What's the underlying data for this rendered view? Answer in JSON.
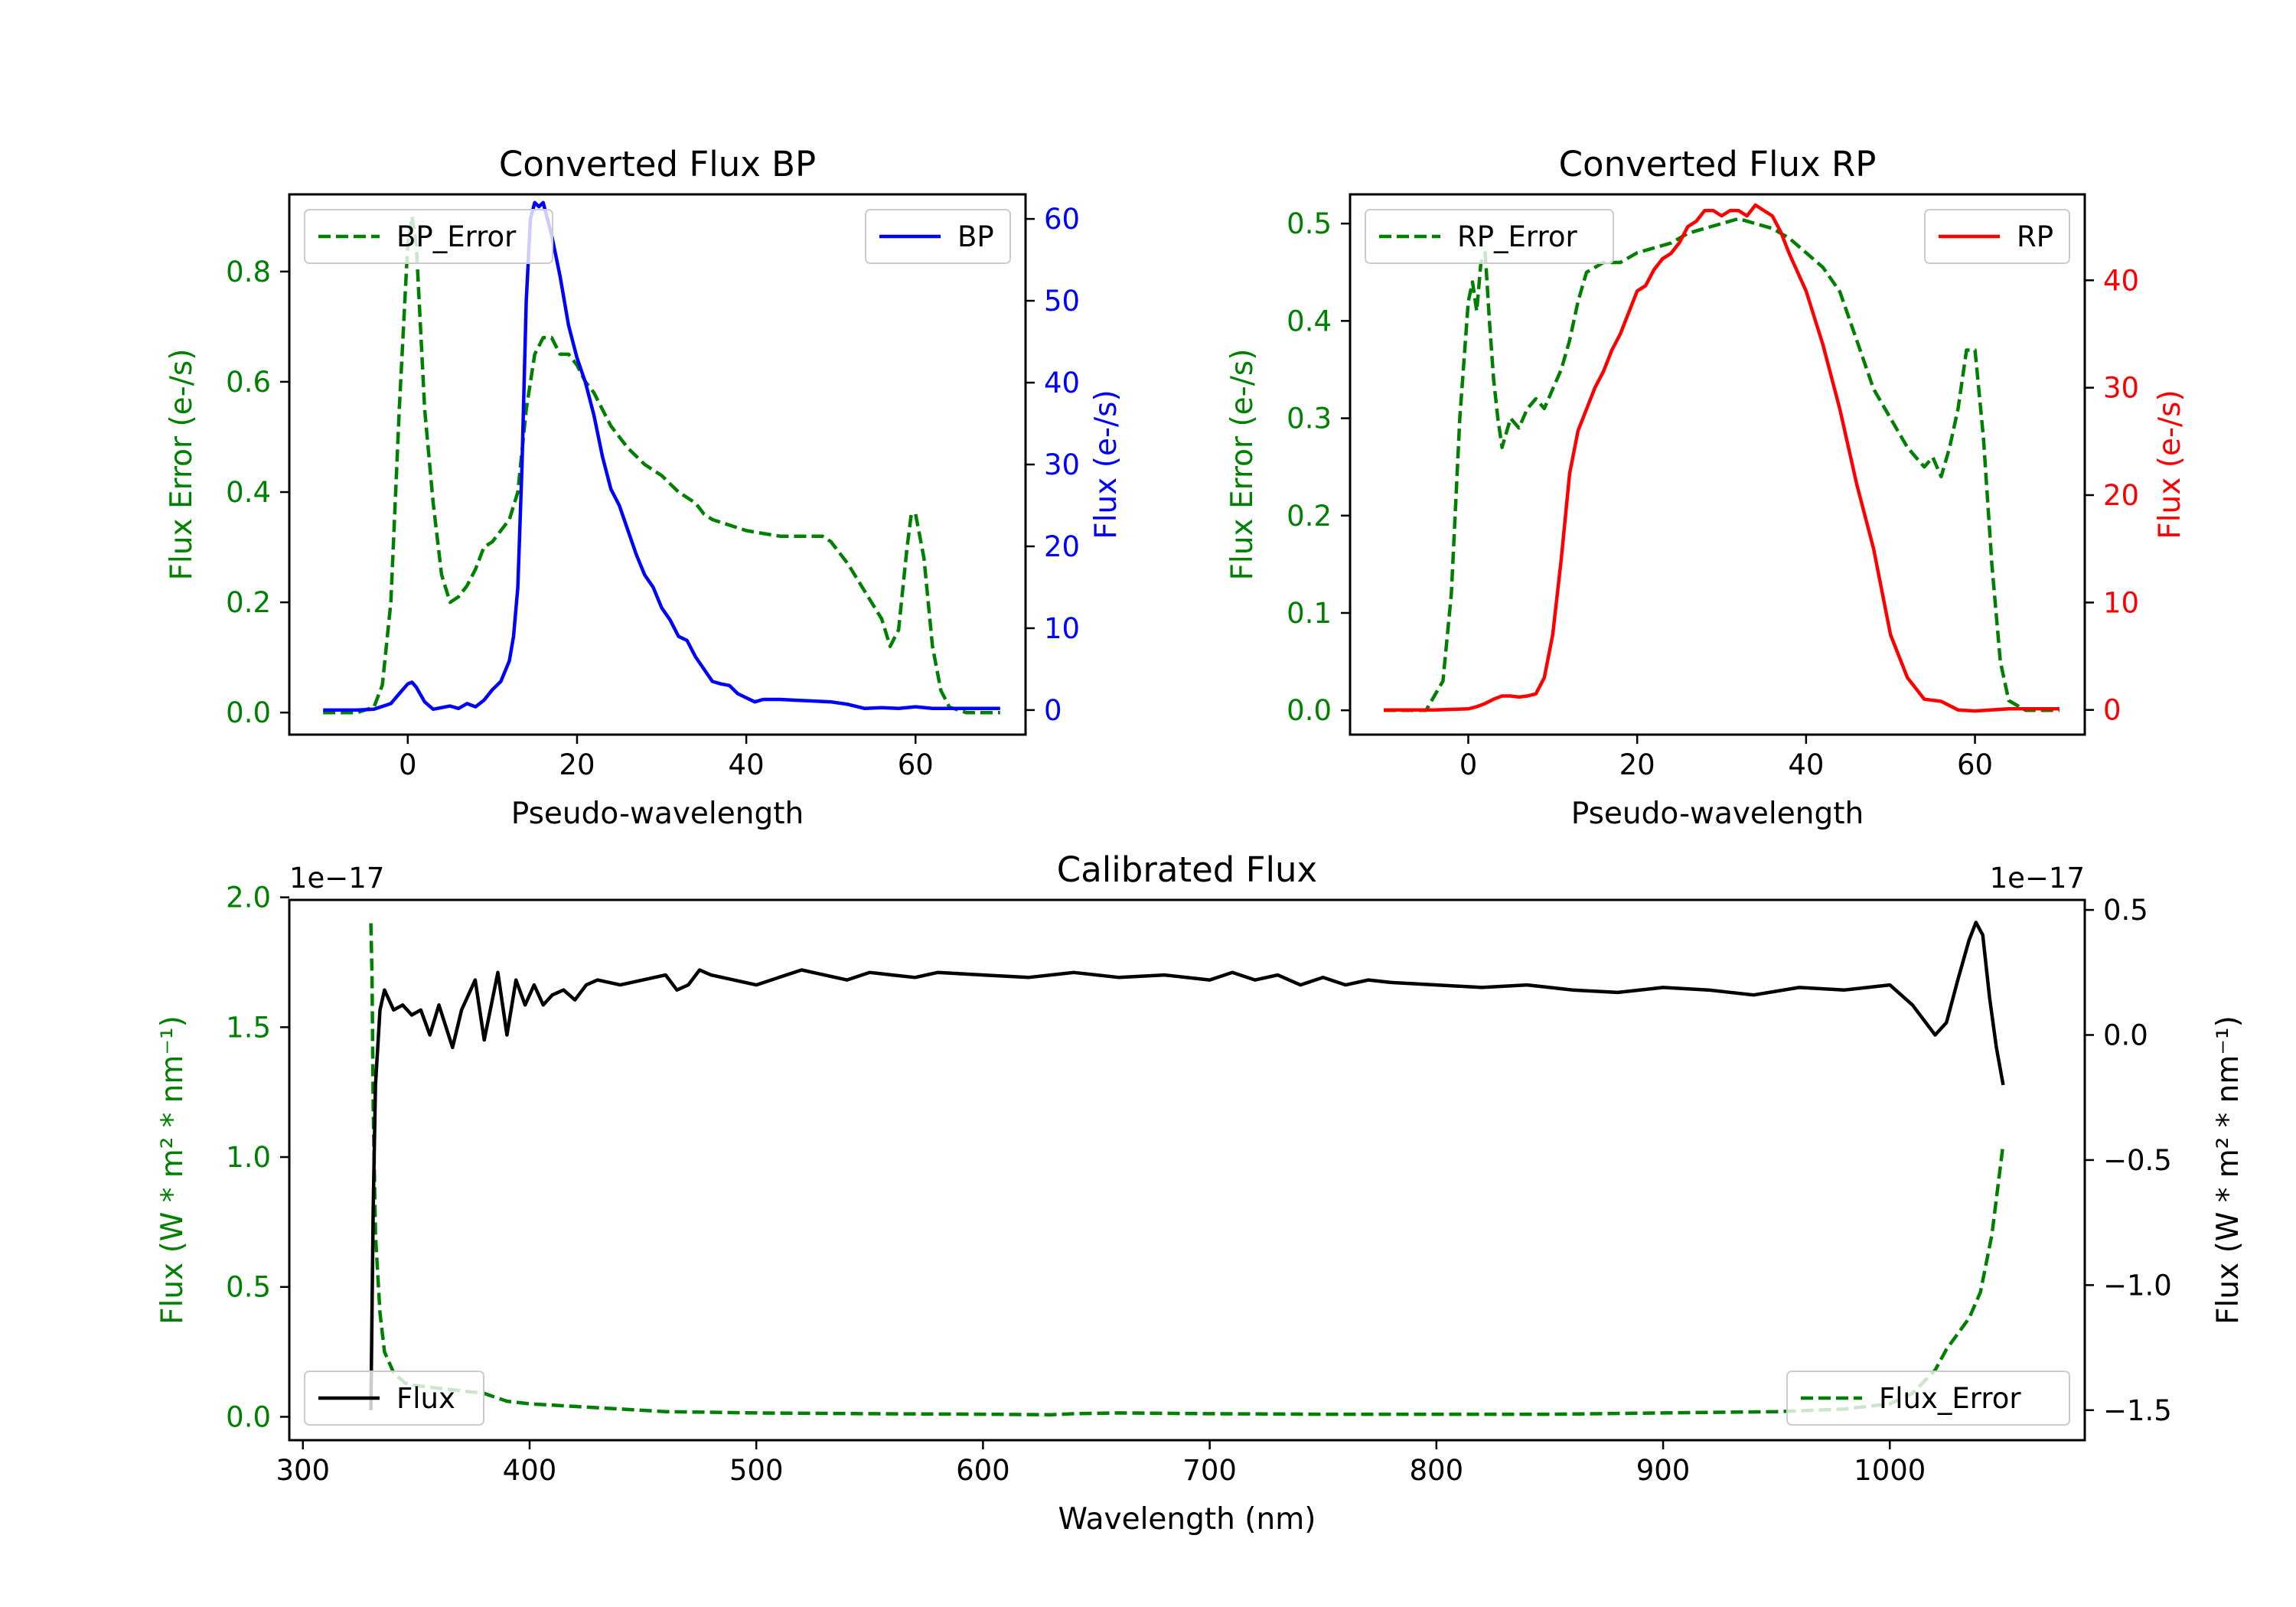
{
  "colors": {
    "error": "#008000",
    "bp": "#0000ff",
    "rp": "#ff0000",
    "flux": "#000000",
    "axes": "#000000"
  },
  "chart_data": [
    {
      "id": "bp",
      "type": "line",
      "title": "Converted Flux BP",
      "xlabel": "Pseudo-wavelength",
      "ylabel_left": "Flux Error (e-/s)",
      "ylabel_right": "Flux (e-/s)",
      "xlim": [
        -14,
        73
      ],
      "ylim_left": [
        -0.04,
        0.94
      ],
      "ylim_right": [
        -3,
        63
      ],
      "xticks": [
        0,
        20,
        40,
        60
      ],
      "xtick_labels": [
        "0",
        "20",
        "40",
        "60"
      ],
      "yticks_left": [
        0.0,
        0.2,
        0.4,
        0.6,
        0.8
      ],
      "ytick_labels_left": [
        "0.0",
        "0.2",
        "0.4",
        "0.6",
        "0.8"
      ],
      "yticks_right": [
        0,
        10,
        20,
        30,
        40,
        50,
        60
      ],
      "ytick_labels_right": [
        "0",
        "10",
        "20",
        "30",
        "40",
        "50",
        "60"
      ],
      "legend_left": {
        "label": "BP_Error",
        "placement": "upper-left",
        "style": "dashed"
      },
      "legend_right": {
        "label": "BP",
        "placement": "upper-right",
        "style": "solid"
      },
      "series": [
        {
          "name": "BP_Error",
          "axis": "left",
          "style": "dashed",
          "color": "#008000",
          "x": [
            -10,
            -6,
            -4,
            -3,
            -2,
            -1,
            0,
            0.5,
            1,
            2,
            3,
            4,
            5,
            6,
            7,
            8,
            9,
            10,
            11,
            12,
            13,
            14,
            15,
            16,
            17,
            18,
            19,
            20,
            21,
            22,
            23,
            24,
            25,
            26,
            28,
            30,
            32,
            34,
            35,
            36,
            38,
            40,
            42,
            44,
            46,
            48,
            49,
            50,
            52,
            54,
            56,
            57,
            58,
            59,
            59.5,
            60,
            61,
            62,
            63,
            64,
            66,
            70
          ],
          "y": [
            0.0,
            0.0,
            0.01,
            0.05,
            0.2,
            0.55,
            0.85,
            0.9,
            0.85,
            0.55,
            0.38,
            0.25,
            0.2,
            0.21,
            0.23,
            0.26,
            0.3,
            0.31,
            0.33,
            0.35,
            0.4,
            0.55,
            0.65,
            0.68,
            0.68,
            0.65,
            0.65,
            0.63,
            0.6,
            0.58,
            0.55,
            0.52,
            0.5,
            0.48,
            0.45,
            0.43,
            0.4,
            0.38,
            0.36,
            0.35,
            0.34,
            0.33,
            0.325,
            0.32,
            0.32,
            0.32,
            0.32,
            0.31,
            0.27,
            0.22,
            0.17,
            0.12,
            0.15,
            0.3,
            0.36,
            0.36,
            0.28,
            0.12,
            0.04,
            0.01,
            0.0,
            0.0
          ]
        },
        {
          "name": "BP",
          "axis": "right",
          "style": "solid",
          "color": "#0000ff",
          "x": [
            -10,
            -6,
            -4,
            -2,
            -1,
            0,
            0.5,
            1,
            2,
            3,
            4,
            5,
            6,
            7,
            8,
            9,
            10,
            11,
            12,
            12.5,
            13,
            13.5,
            14,
            14.5,
            15,
            15.5,
            16,
            17,
            18,
            19,
            20,
            21,
            22,
            23,
            24,
            25,
            26,
            27,
            28,
            29,
            30,
            31,
            32,
            33,
            34,
            35,
            36,
            37,
            38,
            39,
            40,
            41,
            42,
            44,
            46,
            48,
            50,
            52,
            54,
            56,
            58,
            60,
            62,
            66,
            70
          ],
          "y": [
            0,
            0,
            0.1,
            0.8,
            2,
            3.2,
            3.4,
            2.8,
            1,
            0.1,
            0.3,
            0.5,
            0.2,
            0.8,
            0.4,
            1.2,
            2.5,
            3.5,
            6,
            9,
            15,
            30,
            50,
            60,
            62,
            61.5,
            62,
            58,
            53,
            47,
            43,
            40,
            36,
            31,
            27,
            25,
            22,
            19,
            16.5,
            15,
            12.5,
            11,
            9,
            8.5,
            6.5,
            5,
            3.5,
            3.2,
            3,
            2,
            1.5,
            1,
            1.3,
            1.3,
            1.2,
            1.1,
            1,
            0.7,
            0.2,
            0.3,
            0.2,
            0.4,
            0.2,
            0.2,
            0.2
          ]
        }
      ]
    },
    {
      "id": "rp",
      "type": "line",
      "title": "Converted Flux RP",
      "xlabel": "Pseudo-wavelength",
      "ylabel_left": "Flux Error (e-/s)",
      "ylabel_right": "Flux (e-/s)",
      "xlim": [
        -14,
        73
      ],
      "ylim_left": [
        -0.025,
        0.53
      ],
      "ylim_right": [
        -2.3,
        48
      ],
      "xticks": [
        0,
        20,
        40,
        60
      ],
      "xtick_labels": [
        "0",
        "20",
        "40",
        "60"
      ],
      "yticks_left": [
        0.0,
        0.1,
        0.2,
        0.3,
        0.4,
        0.5
      ],
      "ytick_labels_left": [
        "0.0",
        "0.1",
        "0.2",
        "0.3",
        "0.4",
        "0.5"
      ],
      "yticks_right": [
        0,
        10,
        20,
        30,
        40
      ],
      "ytick_labels_right": [
        "0",
        "10",
        "20",
        "30",
        "40"
      ],
      "legend_left": {
        "label": "RP_Error",
        "placement": "upper-left",
        "style": "dashed"
      },
      "legend_right": {
        "label": "RP",
        "placement": "upper-right",
        "style": "solid"
      },
      "series": [
        {
          "name": "RP_Error",
          "axis": "left",
          "style": "dashed",
          "color": "#008000",
          "x": [
            -10,
            -5,
            -3,
            -2,
            -1,
            0,
            0.5,
            1,
            1.5,
            2,
            2.5,
            3,
            3.5,
            4,
            5,
            6,
            7,
            8,
            9,
            10,
            11,
            12,
            13,
            14,
            16,
            18,
            20,
            22,
            24,
            26,
            28,
            30,
            32,
            34,
            36,
            38,
            40,
            42,
            44,
            46,
            48,
            50,
            52,
            53,
            54,
            55,
            56,
            57,
            58,
            59,
            60,
            61,
            62,
            63,
            64,
            66,
            70
          ],
          "y": [
            0.0,
            0.0,
            0.03,
            0.12,
            0.3,
            0.42,
            0.44,
            0.41,
            0.46,
            0.47,
            0.4,
            0.34,
            0.3,
            0.27,
            0.3,
            0.29,
            0.31,
            0.32,
            0.31,
            0.33,
            0.35,
            0.38,
            0.42,
            0.45,
            0.46,
            0.46,
            0.47,
            0.475,
            0.48,
            0.49,
            0.495,
            0.5,
            0.505,
            0.5,
            0.495,
            0.485,
            0.47,
            0.455,
            0.43,
            0.38,
            0.33,
            0.3,
            0.27,
            0.26,
            0.25,
            0.26,
            0.24,
            0.27,
            0.31,
            0.37,
            0.37,
            0.28,
            0.15,
            0.05,
            0.01,
            0.0,
            0.0
          ]
        },
        {
          "name": "RP",
          "axis": "right",
          "style": "solid",
          "color": "#ff0000",
          "x": [
            -10,
            -4,
            -2,
            0,
            1,
            2,
            3,
            4,
            5,
            6,
            7,
            8,
            9,
            10,
            11,
            12,
            13,
            14,
            15,
            16,
            17,
            18,
            19,
            20,
            21,
            22,
            23,
            24,
            25,
            26,
            27,
            28,
            29,
            30,
            31,
            32,
            33,
            34,
            35,
            36,
            37,
            38,
            40,
            42,
            44,
            46,
            48,
            50,
            52,
            54,
            56,
            58,
            60,
            64,
            70
          ],
          "y": [
            0,
            0,
            0.05,
            0.1,
            0.3,
            0.6,
            1,
            1.3,
            1.3,
            1.2,
            1.3,
            1.5,
            3,
            7,
            14,
            22,
            26,
            28,
            30,
            31.5,
            33.5,
            35,
            37,
            39,
            39.5,
            41,
            42,
            42.5,
            43.5,
            45,
            45.5,
            46.5,
            46.5,
            46,
            46.5,
            46.5,
            46,
            47,
            46.5,
            46,
            44.5,
            42.5,
            39,
            34,
            28,
            21,
            15,
            7,
            3,
            1,
            0.8,
            0,
            -0.1,
            0.1,
            0.1
          ]
        }
      ]
    },
    {
      "id": "calibrated",
      "type": "line",
      "title": "Calibrated Flux",
      "xlabel": "Wavelength (nm)",
      "ylabel_left": "Flux (W * m² * nm⁻¹)",
      "ylabel_right": "Flux (W * m² * nm⁻¹)",
      "offset_left": "1e−17",
      "offset_right": "1e−17",
      "xlim": [
        294,
        1086
      ],
      "ylim_left": [
        -0.09,
        1.99
      ],
      "ylim_right": [
        -1.62,
        0.54
      ],
      "xticks": [
        300,
        400,
        500,
        600,
        700,
        800,
        900,
        1000
      ],
      "xtick_labels": [
        "300",
        "400",
        "500",
        "600",
        "700",
        "800",
        "900",
        "1000"
      ],
      "yticks_left": [
        0.0,
        0.5,
        1.0,
        1.5,
        2.0
      ],
      "ytick_labels_left": [
        "0.0",
        "0.5",
        "1.0",
        "1.5",
        "2.0"
      ],
      "yticks_right": [
        -1.5,
        -1.0,
        -0.5,
        0.0,
        0.5
      ],
      "ytick_labels_right": [
        "−1.5",
        "−1.0",
        "−0.5",
        "0.0",
        "0.5"
      ],
      "legend_left": {
        "label": "Flux",
        "placement": "lower-left",
        "style": "solid"
      },
      "legend_right": {
        "label": "Flux_Error",
        "placement": "lower-right",
        "style": "dashed"
      },
      "series": [
        {
          "name": "Flux_Error",
          "axis": "left",
          "style": "dashed",
          "color": "#008000",
          "x": [
            330,
            330.5,
            331,
            332,
            334,
            336,
            340,
            345,
            350,
            360,
            370,
            380,
            390,
            400,
            420,
            440,
            460,
            500,
            550,
            600,
            630,
            640,
            660,
            700,
            750,
            800,
            850,
            900,
            950,
            980,
            1000,
            1010,
            1020,
            1025,
            1030,
            1035,
            1040,
            1045,
            1050
          ],
          "y": [
            1.9,
            1.7,
            1.2,
            0.7,
            0.4,
            0.25,
            0.17,
            0.13,
            0.12,
            0.11,
            0.1,
            0.09,
            0.06,
            0.05,
            0.04,
            0.03,
            0.02,
            0.015,
            0.012,
            0.01,
            0.008,
            0.012,
            0.015,
            0.012,
            0.01,
            0.01,
            0.01,
            0.015,
            0.02,
            0.03,
            0.05,
            0.09,
            0.18,
            0.26,
            0.32,
            0.38,
            0.48,
            0.7,
            1.05
          ]
        },
        {
          "name": "Flux",
          "axis": "right",
          "style": "solid",
          "color": "#000000",
          "x": [
            330,
            331,
            332,
            334,
            336,
            340,
            344,
            348,
            352,
            356,
            360,
            366,
            370,
            376,
            380,
            386,
            390,
            394,
            398,
            402,
            406,
            410,
            415,
            420,
            425,
            430,
            440,
            450,
            460,
            465,
            470,
            475,
            480,
            490,
            500,
            510,
            520,
            530,
            540,
            550,
            560,
            570,
            580,
            600,
            620,
            640,
            660,
            680,
            700,
            710,
            720,
            730,
            740,
            750,
            760,
            770,
            780,
            800,
            820,
            840,
            860,
            880,
            900,
            920,
            940,
            960,
            980,
            1000,
            1010,
            1020,
            1025,
            1030,
            1035,
            1038,
            1041,
            1044,
            1047,
            1050
          ],
          "y": [
            -1.5,
            -0.7,
            -0.2,
            0.1,
            0.18,
            0.1,
            0.12,
            0.08,
            0.1,
            0.0,
            0.12,
            -0.05,
            0.1,
            0.22,
            -0.02,
            0.25,
            0.0,
            0.22,
            0.12,
            0.2,
            0.12,
            0.16,
            0.18,
            0.14,
            0.2,
            0.22,
            0.2,
            0.22,
            0.24,
            0.18,
            0.2,
            0.26,
            0.24,
            0.22,
            0.2,
            0.23,
            0.26,
            0.24,
            0.22,
            0.25,
            0.24,
            0.23,
            0.25,
            0.24,
            0.23,
            0.25,
            0.23,
            0.24,
            0.22,
            0.25,
            0.22,
            0.24,
            0.2,
            0.23,
            0.2,
            0.22,
            0.21,
            0.2,
            0.19,
            0.2,
            0.18,
            0.17,
            0.19,
            0.18,
            0.16,
            0.19,
            0.18,
            0.2,
            0.12,
            0.0,
            0.05,
            0.22,
            0.38,
            0.45,
            0.4,
            0.15,
            -0.05,
            -0.2
          ]
        }
      ]
    }
  ]
}
